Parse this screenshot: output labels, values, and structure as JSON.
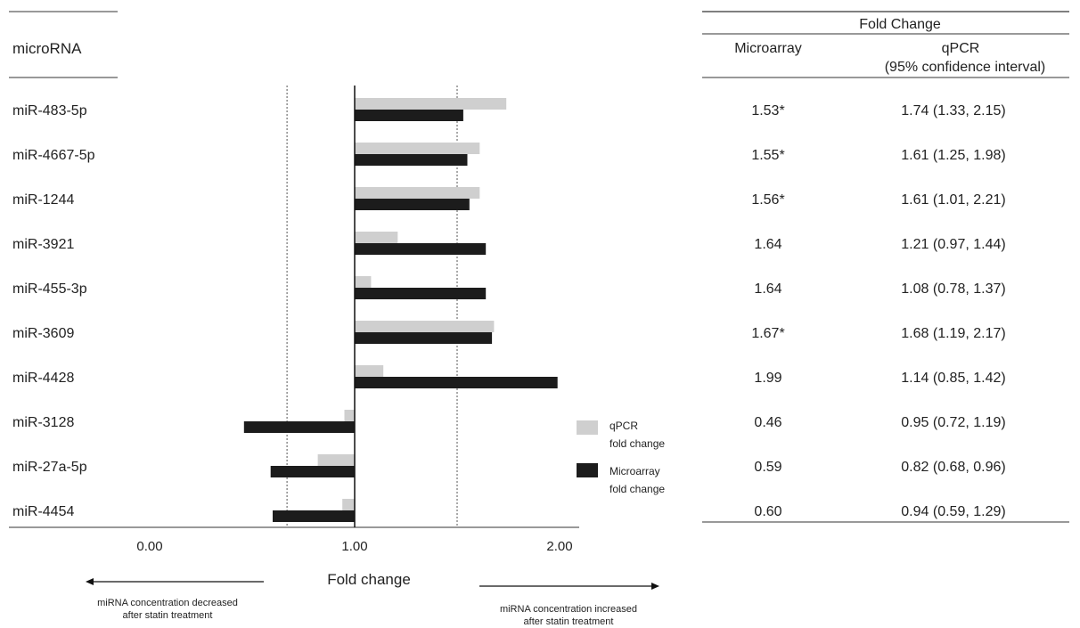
{
  "headers": {
    "microrna": "microRNA",
    "fold_change": "Fold Change",
    "microarray": "Microarray",
    "qpcr": "qPCR",
    "qpcr_ci": "(95% confidence interval)"
  },
  "legend": {
    "qpcr_line1": "qPCR",
    "qpcr_line2": "fold change",
    "microarray_line1": "Microarray",
    "microarray_line2": "fold change"
  },
  "arrows": {
    "left_line1": "miRNA concentration decreased",
    "left_line2": "after statin treatment",
    "right_line1": "miRNA concentration increased",
    "right_line2": "after statin treatment"
  },
  "colors": {
    "qpcr": "#cfcfcf",
    "microarray": "#1c1c1c"
  },
  "chart_data": {
    "type": "bar",
    "orientation": "horizontal",
    "xlabel": "Fold change",
    "xlim": [
      0,
      2
    ],
    "baseline": 1.0,
    "xticks": [
      "0.00",
      "1.00",
      "2.00"
    ],
    "xtick_values": [
      0,
      1,
      2
    ],
    "reference_lines": [
      0.67,
      1.5
    ],
    "categories": [
      "miR-483-5p",
      "miR-4667-5p",
      "miR-1244",
      "miR-3921",
      "miR-455-3p",
      "miR-3609",
      "miR-4428",
      "miR-3128",
      "miR-27a-5p",
      "miR-4454"
    ],
    "series": [
      {
        "name": "qPCR fold change",
        "values": [
          1.74,
          1.61,
          1.61,
          1.21,
          1.08,
          1.68,
          1.14,
          0.95,
          0.82,
          0.94
        ]
      },
      {
        "name": "Microarray fold change",
        "values": [
          1.53,
          1.55,
          1.56,
          1.64,
          1.64,
          1.67,
          1.99,
          0.46,
          0.59,
          0.6
        ]
      }
    ],
    "table": {
      "microarray": [
        "1.53*",
        "1.55*",
        "1.56*",
        "1.64",
        "1.64",
        "1.67*",
        "1.99",
        "0.46",
        "0.59",
        "0.60"
      ],
      "qpcr": [
        "1.74 (1.33, 2.15)",
        "1.61 (1.25, 1.98)",
        "1.61 (1.01, 2.21)",
        "1.21 (0.97, 1.44)",
        "1.08 (0.78, 1.37)",
        "1.68 (1.19, 2.17)",
        "1.14 (0.85, 1.42)",
        "0.95 (0.72, 1.19)",
        "0.82 (0.68, 0.96)",
        "0.94 (0.59, 1.29)"
      ]
    }
  }
}
